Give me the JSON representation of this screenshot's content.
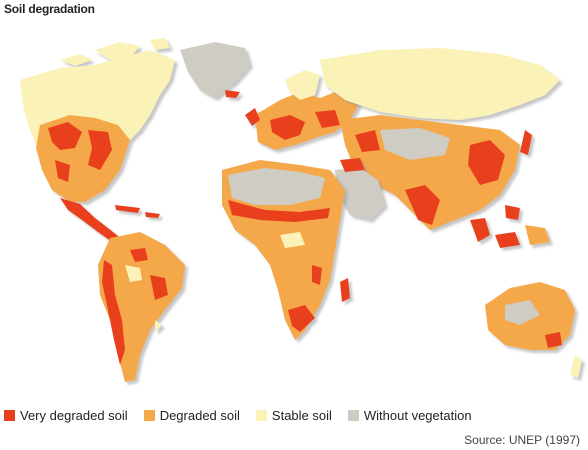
{
  "title": "Soil degradation",
  "legend": [
    {
      "label": "Very degraded soil",
      "color": "#e8401f"
    },
    {
      "label": "Degraded soil",
      "color": "#f5a84a"
    },
    {
      "label": "Stable soil",
      "color": "#fbf2b8"
    },
    {
      "label": "Without vegetation",
      "color": "#cfccc4"
    }
  ],
  "source": "Source: UNEP (1997)"
}
